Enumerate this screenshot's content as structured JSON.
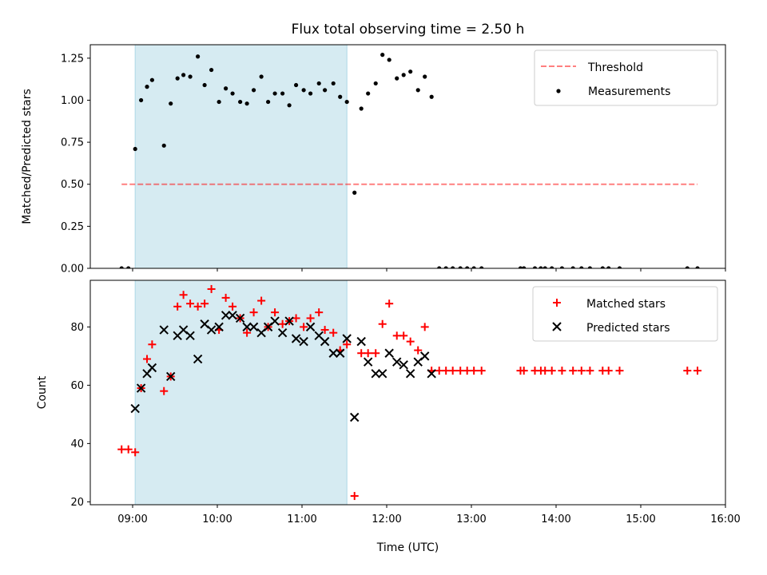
{
  "chart_data": [
    {
      "type": "scatter",
      "title": "Flux total observing time = 2.50 h",
      "xlabel": "",
      "ylabel": "Matched/Predicted stars",
      "xlim": [
        8.5,
        16.0
      ],
      "ylim": [
        0.0,
        1.33
      ],
      "x_unit": "hours UTC",
      "yticks": [
        0.0,
        0.25,
        0.5,
        0.75,
        1.0,
        1.25
      ],
      "ytick_labels": [
        "0.00",
        "0.25",
        "0.50",
        "0.75",
        "1.00",
        "1.25"
      ],
      "shaded_interval": {
        "x": [
          9.03,
          11.53
        ],
        "color": "#add8e6"
      },
      "legend": {
        "placement": "top-right"
      },
      "threshold": {
        "name": "Threshold",
        "x": [
          8.87,
          15.67
        ],
        "y": 0.5,
        "color": "#ff0000",
        "style": "dashed"
      },
      "series": [
        {
          "name": "Measurements",
          "marker": "dot",
          "color": "#000000",
          "x": [
            8.87,
            8.95,
            9.03,
            9.1,
            9.17,
            9.23,
            9.37,
            9.45,
            9.53,
            9.6,
            9.68,
            9.77,
            9.85,
            9.93,
            10.02,
            10.1,
            10.18,
            10.27,
            10.35,
            10.43,
            10.52,
            10.6,
            10.68,
            10.77,
            10.85,
            10.93,
            11.02,
            11.1,
            11.2,
            11.27,
            11.37,
            11.45,
            11.53,
            11.62,
            11.7,
            11.78,
            11.87,
            11.95,
            12.03,
            12.12,
            12.2,
            12.28,
            12.37,
            12.45,
            12.53,
            12.62,
            12.7,
            12.78,
            12.87,
            12.95,
            13.03,
            13.12,
            13.58,
            13.62,
            13.75,
            13.82,
            13.87,
            13.95,
            14.07,
            14.2,
            14.3,
            14.4,
            14.55,
            14.62,
            14.75,
            15.55,
            15.67
          ],
          "y": [
            0.0,
            0.0,
            0.71,
            1.0,
            1.08,
            1.12,
            0.73,
            0.98,
            1.13,
            1.15,
            1.14,
            1.26,
            1.09,
            1.18,
            0.99,
            1.07,
            1.04,
            0.99,
            0.98,
            1.06,
            1.14,
            0.99,
            1.04,
            1.04,
            0.97,
            1.09,
            1.06,
            1.04,
            1.1,
            1.06,
            1.1,
            1.02,
            0.99,
            0.45,
            0.95,
            1.04,
            1.1,
            1.27,
            1.24,
            1.13,
            1.15,
            1.17,
            1.06,
            1.14,
            1.02,
            0.0,
            0.0,
            0.0,
            0.0,
            0.0,
            0.0,
            0.0,
            0.0,
            0.0,
            0.0,
            0.0,
            0.0,
            0.0,
            0.0,
            0.0,
            0.0,
            0.0,
            0.0,
            0.0,
            0.0,
            0.0,
            0.0
          ]
        }
      ]
    },
    {
      "type": "scatter",
      "title": "",
      "xlabel": "Time (UTC)",
      "ylabel": "Count",
      "xlim": [
        8.5,
        16.0
      ],
      "ylim": [
        19.0,
        96.0
      ],
      "x_unit": "hours UTC",
      "xticks": [
        9,
        10,
        11,
        12,
        13,
        14,
        15,
        16
      ],
      "xtick_labels": [
        "09:00",
        "10:00",
        "11:00",
        "12:00",
        "13:00",
        "14:00",
        "15:00",
        "16:00"
      ],
      "yticks": [
        20,
        40,
        60,
        80
      ],
      "ytick_labels": [
        "20",
        "40",
        "60",
        "80"
      ],
      "shaded_interval": {
        "x": [
          9.03,
          11.53
        ],
        "color": "#add8e6"
      },
      "legend": {
        "placement": "top-right"
      },
      "series": [
        {
          "name": "Matched stars",
          "marker": "plus",
          "color": "#ff0000",
          "x": [
            8.87,
            8.95,
            9.03,
            9.1,
            9.17,
            9.23,
            9.37,
            9.45,
            9.53,
            9.6,
            9.68,
            9.77,
            9.85,
            9.93,
            10.02,
            10.1,
            10.18,
            10.27,
            10.35,
            10.43,
            10.52,
            10.6,
            10.68,
            10.77,
            10.85,
            10.93,
            11.02,
            11.1,
            11.2,
            11.27,
            11.37,
            11.45,
            11.53,
            11.62,
            11.7,
            11.78,
            11.87,
            11.95,
            12.03,
            12.12,
            12.2,
            12.28,
            12.37,
            12.45,
            12.53,
            12.62,
            12.7,
            12.78,
            12.87,
            12.95,
            13.03,
            13.12,
            13.58,
            13.62,
            13.75,
            13.82,
            13.87,
            13.95,
            14.07,
            14.2,
            14.3,
            14.4,
            14.55,
            14.62,
            14.75,
            15.55,
            15.67
          ],
          "y": [
            38,
            38,
            37,
            59,
            69,
            74,
            58,
            63,
            87,
            91,
            88,
            87,
            88,
            93,
            79,
            90,
            87,
            83,
            78,
            85,
            89,
            80,
            85,
            81,
            82,
            83,
            80,
            83,
            85,
            79,
            78,
            72,
            74,
            22,
            71,
            71,
            71,
            81,
            88,
            77,
            77,
            75,
            72,
            80,
            65,
            65,
            65,
            65,
            65,
            65,
            65,
            65,
            65,
            65,
            65,
            65,
            65,
            65,
            65,
            65,
            65,
            65,
            65,
            65,
            65,
            65,
            65
          ]
        },
        {
          "name": "Predicted stars",
          "marker": "x",
          "color": "#000000",
          "x": [
            9.03,
            9.1,
            9.17,
            9.23,
            9.37,
            9.45,
            9.53,
            9.6,
            9.68,
            9.77,
            9.85,
            9.93,
            10.02,
            10.1,
            10.18,
            10.27,
            10.35,
            10.43,
            10.52,
            10.6,
            10.68,
            10.77,
            10.85,
            10.93,
            11.02,
            11.1,
            11.2,
            11.27,
            11.37,
            11.45,
            11.53,
            11.62,
            11.7,
            11.78,
            11.87,
            11.95,
            12.03,
            12.12,
            12.2,
            12.28,
            12.37,
            12.45,
            12.53
          ],
          "y": [
            52,
            59,
            64,
            66,
            79,
            63,
            77,
            79,
            77,
            69,
            81,
            79,
            80,
            84,
            84,
            83,
            80,
            80,
            78,
            80,
            82,
            78,
            82,
            76,
            75,
            80,
            77,
            75,
            71,
            71,
            76,
            49,
            75,
            68,
            64,
            64,
            71,
            68,
            67,
            64,
            68,
            70,
            64
          ]
        }
      ]
    }
  ]
}
